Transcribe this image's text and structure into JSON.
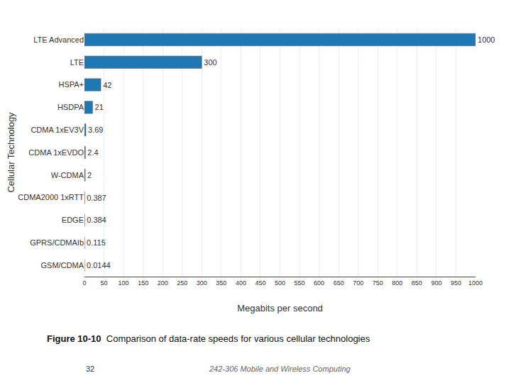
{
  "chart_data": {
    "type": "bar",
    "orientation": "horizontal",
    "categories": [
      "GSM/CDMA",
      "GPRS/CDMAIb",
      "EDGE",
      "CDMA2000 1xRTT",
      "W-CDMA",
      "CDMA 1xEVDO",
      "CDMA 1xEV3V",
      "HSDPA",
      "HSPA+",
      "LTE",
      "LTE Advanced"
    ],
    "values": [
      0.0144,
      0.115,
      0.384,
      0.387,
      2,
      2.4,
      3.69,
      21,
      42,
      300,
      1000
    ],
    "xlabel": "Megabits per second",
    "ylabel": "Cellular Technology",
    "xlim": [
      0,
      1000
    ],
    "xticks": [
      0,
      50,
      100,
      150,
      200,
      250,
      300,
      350,
      400,
      450,
      500,
      550,
      600,
      650,
      700,
      750,
      800,
      850,
      900,
      950,
      1000
    ],
    "grid": true,
    "data_labels": true,
    "annotations": [
      "Figure 10-10",
      "Comparison of data-rate speeds for various cellular technologies",
      "32",
      "242-306 Mobile and Wireless Computing"
    ]
  }
}
